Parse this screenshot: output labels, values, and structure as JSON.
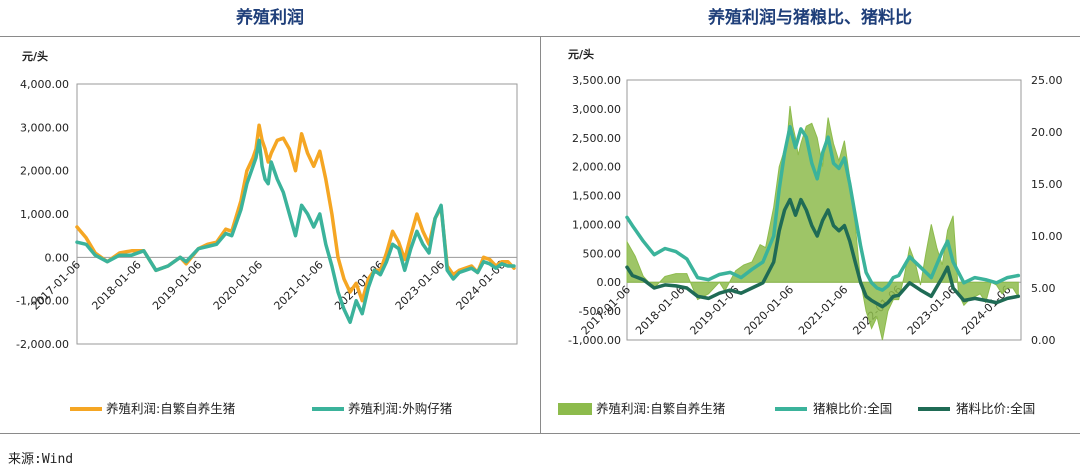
{
  "source": "来源:Wind",
  "chart_data": [
    {
      "type": "line",
      "title": "养殖利润",
      "unit": "元/头",
      "y_ticks": [
        "4,000.00",
        "3,000.00",
        "2,000.00",
        "1,000.00",
        "0.00",
        "-1,000.00",
        "-2,000.00"
      ],
      "ylim": [
        -2000,
        4000
      ],
      "x_ticks": [
        "2017-01-06",
        "2018-01-06",
        "2019-01-06",
        "2020-01-06",
        "2021-01-06",
        "2022-01-06",
        "2023-01-06",
        "2024-01-06"
      ],
      "xlim": [
        2017.0,
        2024.25
      ],
      "series": [
        {
          "name": "养殖利润:自繁自养生猪",
          "color": "#f5a623",
          "x": [
            2017.0,
            2017.15,
            2017.3,
            2017.5,
            2017.7,
            2017.9,
            2018.1,
            2018.3,
            2018.5,
            2018.7,
            2018.8,
            2019.0,
            2019.15,
            2019.3,
            2019.45,
            2019.55,
            2019.7,
            2019.8,
            2019.9,
            2019.95,
            2020.0,
            2020.05,
            2020.1,
            2020.15,
            2020.2,
            2020.3,
            2020.4,
            2020.5,
            2020.6,
            2020.7,
            2020.8,
            2020.9,
            2021.0,
            2021.1,
            2021.2,
            2021.3,
            2021.4,
            2021.5,
            2021.6,
            2021.7,
            2021.8,
            2021.9,
            2022.0,
            2022.1,
            2022.2,
            2022.3,
            2022.4,
            2022.5,
            2022.6,
            2022.7,
            2022.8,
            2022.9,
            2023.0,
            2023.1,
            2023.2,
            2023.3,
            2023.4,
            2023.5,
            2023.6,
            2023.7,
            2023.8,
            2023.9,
            2024.0,
            2024.1,
            2024.2
          ],
          "y": [
            700,
            450,
            100,
            -100,
            100,
            150,
            150,
            -300,
            -200,
            0,
            -150,
            200,
            300,
            350,
            650,
            600,
            1300,
            2000,
            2300,
            2500,
            3050,
            2700,
            2500,
            2200,
            2400,
            2700,
            2750,
            2500,
            2000,
            2850,
            2400,
            2100,
            2450,
            1800,
            1000,
            0,
            -500,
            -800,
            -600,
            -1000,
            -500,
            -300,
            -300,
            100,
            600,
            350,
            -50,
            500,
            1000,
            600,
            300,
            900,
            1150,
            -200,
            -400,
            -300,
            -250,
            -200,
            -350,
            0,
            -50,
            -200,
            -100,
            -100,
            -250
          ]
        },
        {
          "name": "养殖利润:外购仔猪",
          "color": "#3bb39b",
          "x": [
            2017.0,
            2017.15,
            2017.3,
            2017.5,
            2017.7,
            2017.9,
            2018.1,
            2018.3,
            2018.5,
            2018.7,
            2018.8,
            2019.0,
            2019.15,
            2019.3,
            2019.45,
            2019.55,
            2019.7,
            2019.8,
            2019.9,
            2019.95,
            2020.0,
            2020.05,
            2020.1,
            2020.15,
            2020.2,
            2020.3,
            2020.4,
            2020.5,
            2020.6,
            2020.7,
            2020.8,
            2020.9,
            2021.0,
            2021.1,
            2021.2,
            2021.3,
            2021.4,
            2021.5,
            2021.6,
            2021.7,
            2021.8,
            2021.9,
            2022.0,
            2022.1,
            2022.2,
            2022.3,
            2022.4,
            2022.5,
            2022.6,
            2022.7,
            2022.8,
            2022.9,
            2023.0,
            2023.1,
            2023.2,
            2023.3,
            2023.4,
            2023.5,
            2023.6,
            2023.7,
            2023.8,
            2023.9,
            2024.0,
            2024.1,
            2024.2
          ],
          "y": [
            350,
            300,
            50,
            -100,
            50,
            50,
            150,
            -300,
            -200,
            0,
            -100,
            200,
            250,
            300,
            550,
            500,
            1100,
            1700,
            2100,
            2300,
            2700,
            2100,
            1800,
            1700,
            2200,
            1800,
            1500,
            1000,
            500,
            1200,
            1000,
            700,
            1000,
            300,
            -200,
            -800,
            -1200,
            -1500,
            -1000,
            -1300,
            -700,
            -300,
            -400,
            -100,
            300,
            200,
            -300,
            200,
            600,
            300,
            100,
            900,
            1200,
            -300,
            -500,
            -350,
            -300,
            -250,
            -350,
            -100,
            -150,
            -250,
            -150,
            -200,
            -200
          ]
        }
      ]
    },
    {
      "type": "line",
      "title": "养殖利润与猪粮比、猪料比",
      "unit": "元/头",
      "y_ticks_left": [
        "3,500.00",
        "3,000.00",
        "2,500.00",
        "2,000.00",
        "1,500.00",
        "1,000.00",
        "500.00",
        "0.00",
        "-500.00",
        "-1,000.00"
      ],
      "y_ticks_right": [
        "25.00",
        "20.00",
        "15.00",
        "10.00",
        "5.00",
        "0.00"
      ],
      "ylim_left": [
        -1000,
        3500
      ],
      "ylim_right": [
        0,
        25
      ],
      "x_ticks": [
        "2017-01-06",
        "2018-01-06",
        "2019-01-06",
        "2020-01-06",
        "2021-01-06",
        "2022-01-06",
        "2023-01-06",
        "2024-01-06"
      ],
      "xlim": [
        2017.0,
        2024.25
      ],
      "series": [
        {
          "name": "养殖利润:自繁自养生猪",
          "kind": "area",
          "axis": "left",
          "color": "#8dbb4c",
          "x": [
            2017.0,
            2017.15,
            2017.3,
            2017.5,
            2017.7,
            2017.9,
            2018.1,
            2018.3,
            2018.5,
            2018.7,
            2018.8,
            2019.0,
            2019.15,
            2019.3,
            2019.45,
            2019.55,
            2019.7,
            2019.8,
            2019.9,
            2019.95,
            2020.0,
            2020.05,
            2020.1,
            2020.15,
            2020.2,
            2020.3,
            2020.4,
            2020.5,
            2020.6,
            2020.7,
            2020.8,
            2020.9,
            2021.0,
            2021.1,
            2021.2,
            2021.3,
            2021.4,
            2021.5,
            2021.6,
            2021.7,
            2021.8,
            2021.9,
            2022.0,
            2022.1,
            2022.2,
            2022.3,
            2022.4,
            2022.5,
            2022.6,
            2022.7,
            2022.8,
            2022.9,
            2023.0,
            2023.1,
            2023.2,
            2023.3,
            2023.4,
            2023.5,
            2023.6,
            2023.7,
            2023.8,
            2023.9,
            2024.0,
            2024.1,
            2024.2
          ],
          "y": [
            700,
            450,
            100,
            -100,
            100,
            150,
            150,
            -300,
            -200,
            0,
            -150,
            200,
            300,
            350,
            650,
            600,
            1300,
            2000,
            2300,
            2500,
            3050,
            2700,
            2500,
            2200,
            2400,
            2700,
            2750,
            2500,
            2000,
            2850,
            2400,
            2100,
            2450,
            1800,
            1000,
            0,
            -500,
            -800,
            -600,
            -1000,
            -500,
            -300,
            -300,
            100,
            600,
            350,
            -50,
            500,
            1000,
            600,
            300,
            900,
            1150,
            -200,
            -400,
            -300,
            -250,
            -200,
            -350,
            0,
            -50,
            -200,
            -100,
            -100,
            -250
          ]
        },
        {
          "name": "猪粮比价:全国",
          "axis": "right",
          "color": "#3bb39b",
          "x": [
            2017.0,
            2017.1,
            2017.3,
            2017.5,
            2017.7,
            2017.9,
            2018.1,
            2018.3,
            2018.5,
            2018.7,
            2018.9,
            2019.1,
            2019.3,
            2019.5,
            2019.7,
            2019.8,
            2019.9,
            2020.0,
            2020.1,
            2020.2,
            2020.3,
            2020.4,
            2020.5,
            2020.6,
            2020.7,
            2020.8,
            2020.9,
            2021.0,
            2021.1,
            2021.2,
            2021.3,
            2021.4,
            2021.5,
            2021.6,
            2021.7,
            2021.8,
            2021.9,
            2022.0,
            2022.2,
            2022.4,
            2022.6,
            2022.8,
            2022.9,
            2023.0,
            2023.2,
            2023.4,
            2023.6,
            2023.8,
            2024.0,
            2024.2
          ],
          "y": [
            11.8,
            11.0,
            9.5,
            8.2,
            8.8,
            8.5,
            7.8,
            6.0,
            5.8,
            6.3,
            6.5,
            6.0,
            6.8,
            7.5,
            10.0,
            14.5,
            18.0,
            20.5,
            18.5,
            20.3,
            19.5,
            17.0,
            15.5,
            18.0,
            19.5,
            17.0,
            16.5,
            17.5,
            15.0,
            12.0,
            9.0,
            6.5,
            5.5,
            5.0,
            4.8,
            5.2,
            6.0,
            6.2,
            8.0,
            7.0,
            6.0,
            8.5,
            9.5,
            7.5,
            5.5,
            6.0,
            5.8,
            5.5,
            6.0,
            6.2
          ]
        },
        {
          "name": "猪料比价:全国",
          "axis": "right",
          "color": "#1f6b55",
          "x": [
            2017.0,
            2017.1,
            2017.3,
            2017.5,
            2017.7,
            2017.9,
            2018.1,
            2018.3,
            2018.5,
            2018.7,
            2018.9,
            2019.1,
            2019.3,
            2019.5,
            2019.7,
            2019.8,
            2019.9,
            2020.0,
            2020.1,
            2020.2,
            2020.3,
            2020.4,
            2020.5,
            2020.6,
            2020.7,
            2020.8,
            2020.9,
            2021.0,
            2021.1,
            2021.2,
            2021.3,
            2021.4,
            2021.5,
            2021.6,
            2021.7,
            2021.8,
            2021.9,
            2022.0,
            2022.2,
            2022.4,
            2022.6,
            2022.8,
            2022.9,
            2023.0,
            2023.2,
            2023.4,
            2023.6,
            2023.8,
            2024.0,
            2024.2
          ],
          "y": [
            7.0,
            6.2,
            5.8,
            5.0,
            5.3,
            5.2,
            5.0,
            4.2,
            4.0,
            4.5,
            4.8,
            4.5,
            5.0,
            5.5,
            7.5,
            10.5,
            12.5,
            13.5,
            12.0,
            13.5,
            12.5,
            11.0,
            10.0,
            11.5,
            12.5,
            11.0,
            10.5,
            11.0,
            9.5,
            7.5,
            5.5,
            4.2,
            3.8,
            3.5,
            3.2,
            3.6,
            4.2,
            4.3,
            5.5,
            4.8,
            4.2,
            6.0,
            7.0,
            5.0,
            3.8,
            4.0,
            3.8,
            3.6,
            4.0,
            4.2
          ]
        }
      ]
    }
  ]
}
